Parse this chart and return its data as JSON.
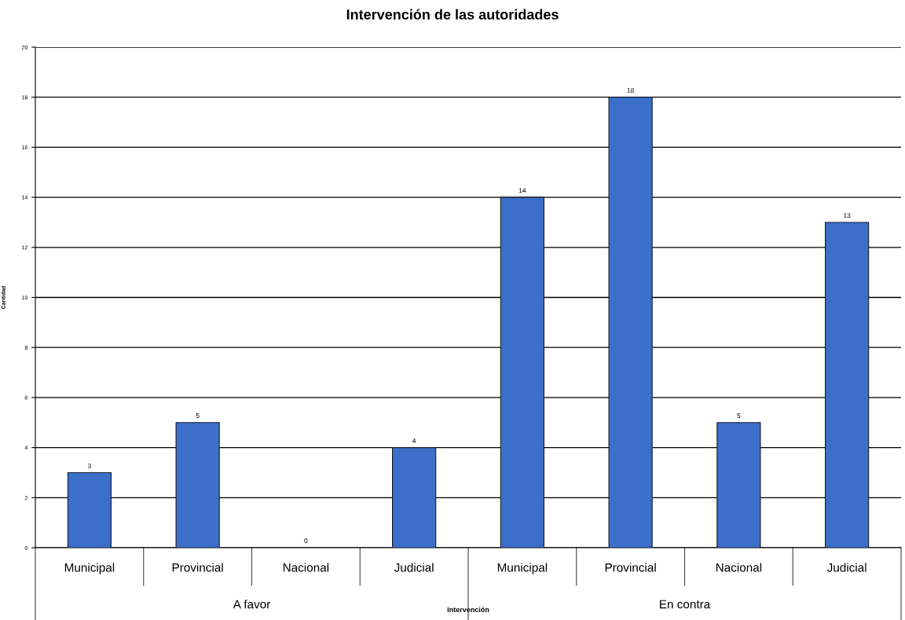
{
  "chart_data": {
    "type": "bar",
    "title": "Intervención de las autoridades",
    "xlabel": "Intervención",
    "ylabel": "Cantidad",
    "categories": [
      "Municipal",
      "Provincial",
      "Nacional",
      "Judicial",
      "Municipal",
      "Provincial",
      "Nacional",
      "Judicial"
    ],
    "values": [
      3,
      5,
      0,
      4,
      14,
      18,
      5,
      13
    ],
    "color": "#3b6fca",
    "ylim": [
      0,
      20
    ],
    "yticks": [
      0,
      2,
      4,
      6,
      8,
      10,
      12,
      14,
      16,
      18,
      20
    ],
    "grid": "y",
    "data_labels": true,
    "annotations": [
      "A favor",
      "En contra"
    ]
  }
}
